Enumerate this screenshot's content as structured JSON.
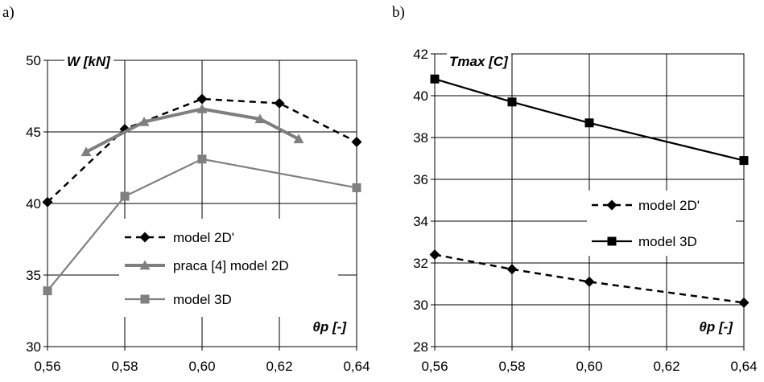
{
  "chart_data": [
    {
      "panel_label": "a)",
      "type": "line",
      "ylabel": "W [kN]",
      "xlabel": "θp [-]",
      "xlim": [
        0.56,
        0.64
      ],
      "ylim": [
        30,
        50
      ],
      "x_ticks": [
        "0,56",
        "0,58",
        "0,60",
        "0,62",
        "0,64"
      ],
      "y_ticks": [
        "30",
        "35",
        "40",
        "45",
        "50"
      ],
      "grid": true,
      "legend_position": "center",
      "series": [
        {
          "name": "model 2D'",
          "style": "dashed",
          "marker": "diamond",
          "color": "#000000",
          "x": [
            0.56,
            0.58,
            0.6,
            0.62,
            0.64
          ],
          "y": [
            40.1,
            45.2,
            47.3,
            47.0,
            44.3
          ]
        },
        {
          "name": "praca [4] model 2D",
          "style": "solid-thick",
          "marker": "triangle",
          "color": "#7f7f7f",
          "x": [
            0.57,
            0.585,
            0.6,
            0.615,
            0.625
          ],
          "y": [
            43.6,
            45.7,
            46.6,
            45.9,
            44.5
          ]
        },
        {
          "name": "model 3D",
          "style": "solid",
          "marker": "square",
          "color": "#808080",
          "x": [
            0.56,
            0.58,
            0.6,
            0.64
          ],
          "y": [
            33.9,
            40.5,
            43.1,
            41.1
          ]
        }
      ]
    },
    {
      "panel_label": "b)",
      "type": "line",
      "ylabel": "Tmax [C]",
      "xlabel": "θp [-]",
      "xlim": [
        0.56,
        0.64
      ],
      "ylim": [
        28,
        42
      ],
      "x_ticks": [
        "0,56",
        "0,58",
        "0,60",
        "0,62",
        "0,64"
      ],
      "y_ticks": [
        "28",
        "30",
        "32",
        "34",
        "36",
        "38",
        "40",
        "42"
      ],
      "grid": true,
      "legend_position": "center-right",
      "series": [
        {
          "name": "model 2D'",
          "style": "dashed",
          "marker": "diamond",
          "color": "#000000",
          "x": [
            0.56,
            0.58,
            0.6,
            0.64
          ],
          "y": [
            32.4,
            31.7,
            31.1,
            30.1
          ]
        },
        {
          "name": "model 3D",
          "style": "solid",
          "marker": "square",
          "color": "#000000",
          "x": [
            0.56,
            0.58,
            0.6,
            0.64
          ],
          "y": [
            40.8,
            39.7,
            38.7,
            36.9
          ]
        }
      ]
    }
  ]
}
